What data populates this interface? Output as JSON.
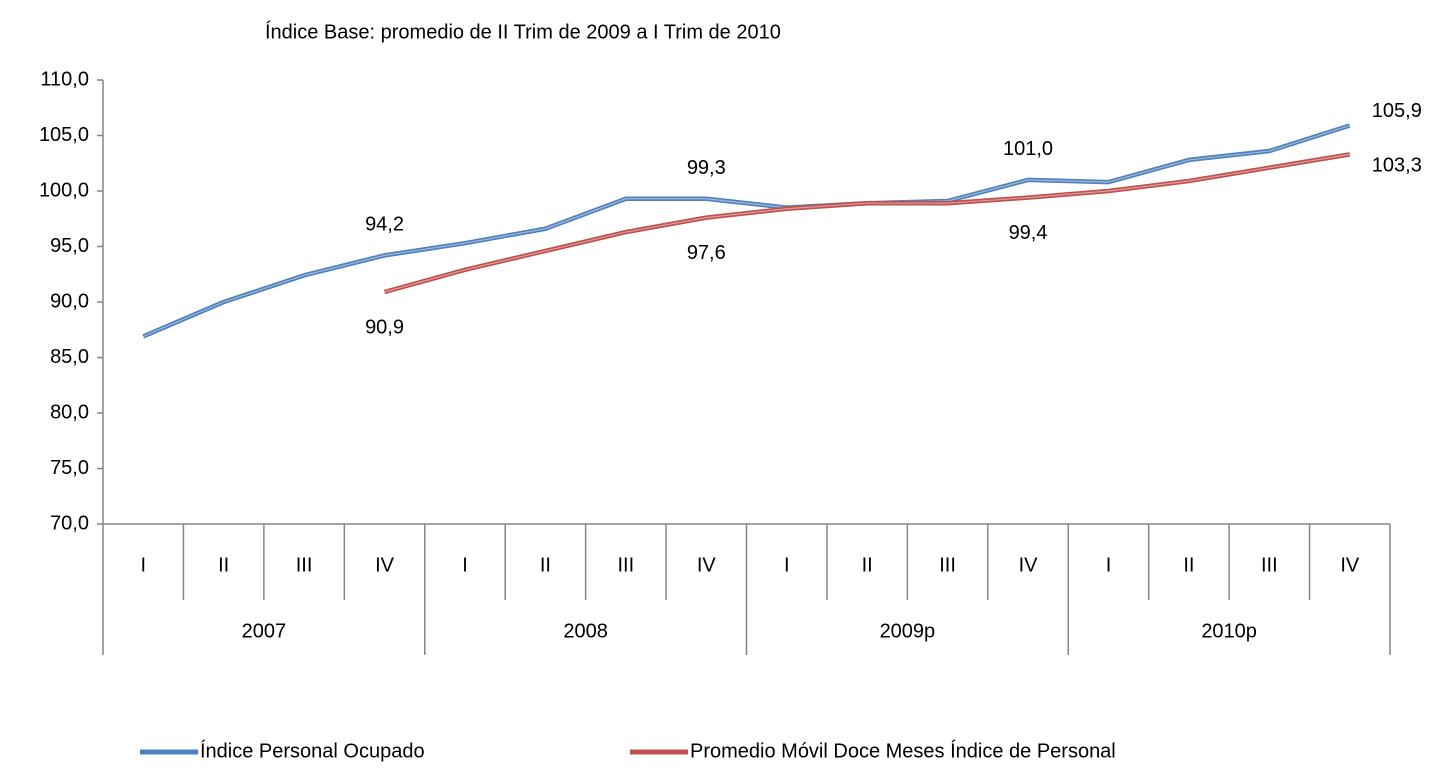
{
  "chart_data": {
    "type": "line",
    "title": "Índice Base: promedio de II Trim de 2009 a I Trim de 2010",
    "categories": [
      "I",
      "II",
      "III",
      "IV",
      "I",
      "II",
      "III",
      "IV",
      "I",
      "II",
      "III",
      "IV",
      "I",
      "II",
      "III",
      "IV"
    ],
    "category_groups": [
      "2007",
      "2008",
      "2009p",
      "2010p"
    ],
    "ylim": [
      70,
      110
    ],
    "yticks": [
      {
        "value": 70,
        "label": "70,0"
      },
      {
        "value": 75,
        "label": "75,0"
      },
      {
        "value": 80,
        "label": "80,0"
      },
      {
        "value": 85,
        "label": "85,0"
      },
      {
        "value": 90,
        "label": "90,0"
      },
      {
        "value": 95,
        "label": "95,0"
      },
      {
        "value": 100,
        "label": "100,0"
      },
      {
        "value": 105,
        "label": "105,0"
      },
      {
        "value": 110,
        "label": "110,0"
      }
    ],
    "grid": false,
    "legend": "bottom",
    "series": [
      {
        "name": "Índice Personal Ocupado",
        "color": "#4f81bd",
        "values": [
          86.9,
          90.0,
          92.4,
          94.2,
          95.3,
          96.6,
          99.3,
          99.3,
          98.5,
          98.9,
          99.1,
          101.0,
          100.8,
          102.8,
          103.6,
          105.9
        ],
        "value_labels": [
          null,
          null,
          null,
          "94,2",
          null,
          null,
          null,
          "99,3",
          null,
          null,
          null,
          "101,0",
          null,
          null,
          null,
          "105,9"
        ]
      },
      {
        "name": "Promedio Móvil Doce Meses Índice de Personal",
        "color": "#c0504d",
        "values": [
          null,
          null,
          null,
          90.9,
          92.9,
          94.6,
          96.3,
          97.6,
          98.4,
          98.9,
          98.9,
          99.4,
          100.0,
          100.9,
          102.1,
          103.3
        ],
        "value_labels": [
          null,
          null,
          null,
          "90,9",
          null,
          null,
          null,
          "97,6",
          null,
          null,
          null,
          "99,4",
          null,
          null,
          null,
          "103,3"
        ]
      }
    ]
  }
}
